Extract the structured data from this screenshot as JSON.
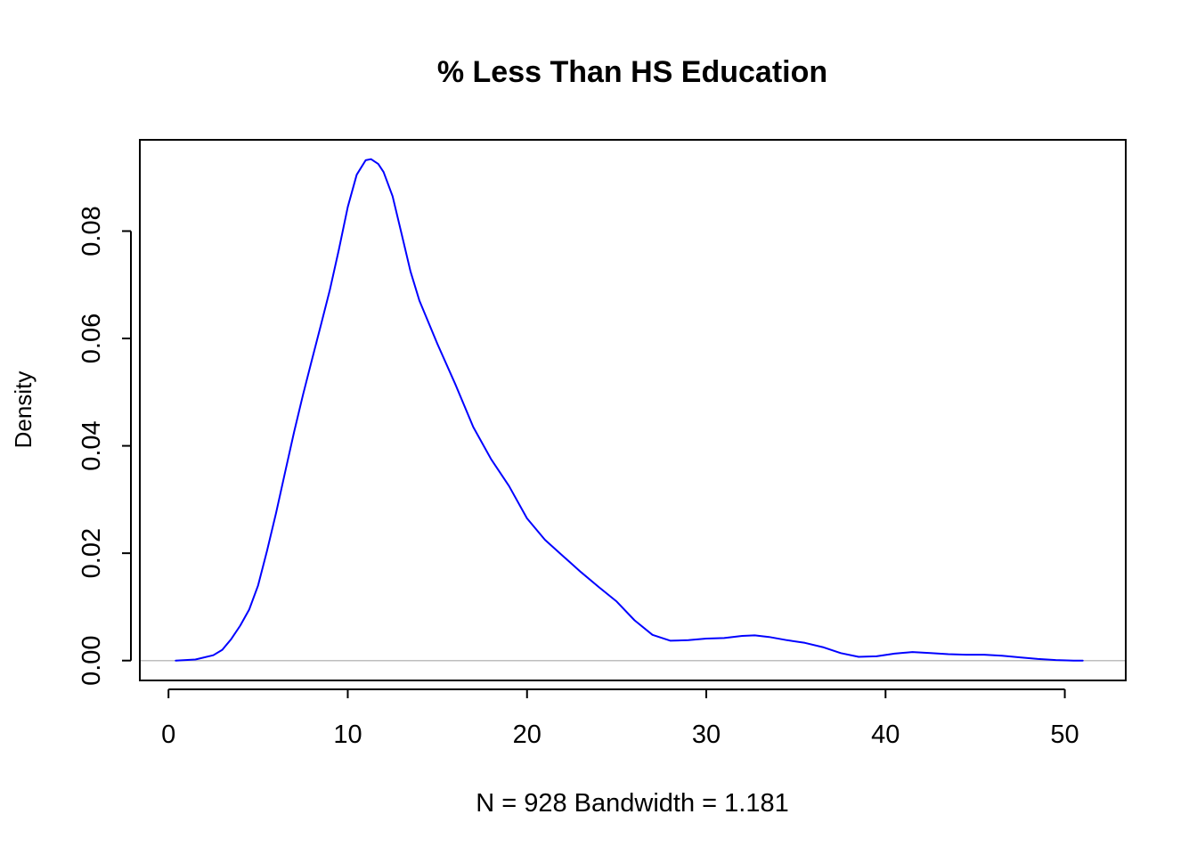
{
  "chart_data": {
    "type": "line",
    "title": "% Less Than HS Education",
    "xlabel": "N = 928   Bandwidth = 1.181",
    "ylabel": "Density",
    "xlim": [
      -1.6,
      53.4
    ],
    "ylim": [
      -0.0037,
      0.097
    ],
    "xticks": [
      0,
      10,
      20,
      30,
      40,
      50
    ],
    "xtick_labels": [
      "0",
      "10",
      "20",
      "30",
      "40",
      "50"
    ],
    "yticks": [
      0.0,
      0.02,
      0.04,
      0.06,
      0.08
    ],
    "ytick_labels": [
      "0.00",
      "0.02",
      "0.04",
      "0.06",
      "0.08"
    ],
    "grid": false,
    "zero_line": true,
    "line_color": "#0000ff",
    "zero_line_color": "#bebebe",
    "series": [
      {
        "x": [
          0.4,
          1.5,
          2.5,
          3.0,
          3.5,
          4.0,
          4.5,
          5.0,
          5.5,
          6.0,
          6.5,
          7.0,
          7.5,
          8.0,
          8.5,
          9.0,
          9.5,
          10.0,
          10.5,
          11.0,
          11.3,
          11.7,
          12.0,
          12.5,
          13.0,
          13.5,
          14.0,
          15.0,
          16.0,
          17.0,
          18.0,
          19.0,
          20.0,
          21.0,
          22.0,
          23.0,
          24.0,
          25.0,
          26.0,
          27.0,
          28.0,
          29.0,
          30.0,
          31.0,
          32.0,
          32.7,
          33.5,
          34.5,
          35.5,
          36.5,
          37.5,
          38.5,
          39.5,
          40.5,
          41.5,
          42.5,
          43.5,
          44.5,
          45.5,
          46.5,
          47.5,
          48.5,
          49.5,
          50.5,
          51.0
        ],
        "y": [
          0.0,
          0.0002,
          0.001,
          0.002,
          0.004,
          0.0065,
          0.0095,
          0.014,
          0.0205,
          0.0275,
          0.035,
          0.0425,
          0.0495,
          0.056,
          0.0625,
          0.069,
          0.0765,
          0.0845,
          0.0905,
          0.0932,
          0.0934,
          0.0925,
          0.091,
          0.0865,
          0.0795,
          0.0725,
          0.067,
          0.059,
          0.0515,
          0.0435,
          0.0375,
          0.0325,
          0.0265,
          0.0225,
          0.0195,
          0.0165,
          0.0137,
          0.011,
          0.0075,
          0.0048,
          0.0037,
          0.0038,
          0.0041,
          0.0042,
          0.0046,
          0.0047,
          0.0044,
          0.0038,
          0.0033,
          0.0025,
          0.0014,
          0.0007,
          0.0008,
          0.0013,
          0.0016,
          0.0014,
          0.0012,
          0.0011,
          0.0011,
          0.0009,
          0.0006,
          0.0003,
          0.0001,
          0.0,
          0.0
        ]
      }
    ]
  }
}
